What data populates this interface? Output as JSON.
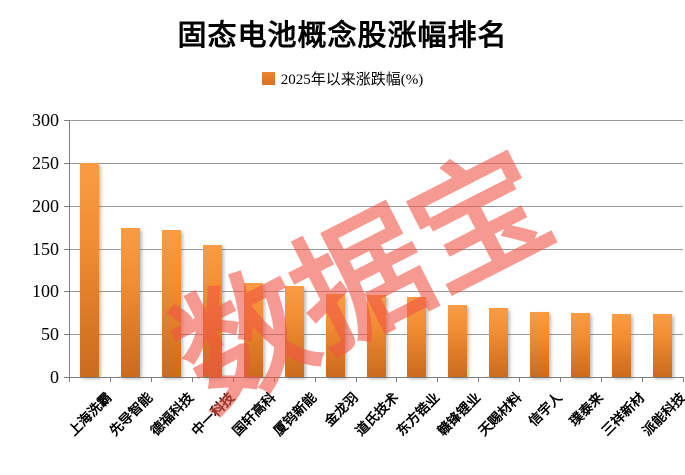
{
  "chart": {
    "title": "固态电池概念股涨幅排名",
    "legend": "2025年以来涨跌幅(%)"
  },
  "watermark": {
    "text": "数据宝"
  },
  "colors": {
    "bar_top": "#FA9C44",
    "bar_bottom": "#CB6B1E",
    "legend_swatch": "#E8782A",
    "watermark": "#F05546",
    "gridline": "#9A9A9A",
    "axis": "#7F7F7F",
    "text": "#000000"
  },
  "chart_data": {
    "type": "bar",
    "title": "固态电池概念股涨幅排名",
    "legend_entries": [
      "2025年以来涨跌幅(%)"
    ],
    "categories": [
      "上海洗霸",
      "先导智能",
      "德福科技",
      "中一科技",
      "国轩高科",
      "厦钨新能",
      "金龙羽",
      "道氏技术",
      "东方锆业",
      "赣锋锂业",
      "天赐材料",
      "信宇人",
      "璞泰来",
      "三祥新材",
      "派能科技"
    ],
    "values": [
      250,
      174,
      172,
      154,
      110,
      106,
      97,
      96,
      93,
      84,
      80,
      76,
      75,
      74,
      73
    ],
    "xlabel": "",
    "ylabel": "",
    "ylim": [
      0,
      300
    ],
    "yticks": [
      0,
      50,
      100,
      150,
      200,
      250,
      300
    ],
    "grid": true,
    "legend_position": "top-center",
    "annotations": [
      "数据宝"
    ]
  }
}
